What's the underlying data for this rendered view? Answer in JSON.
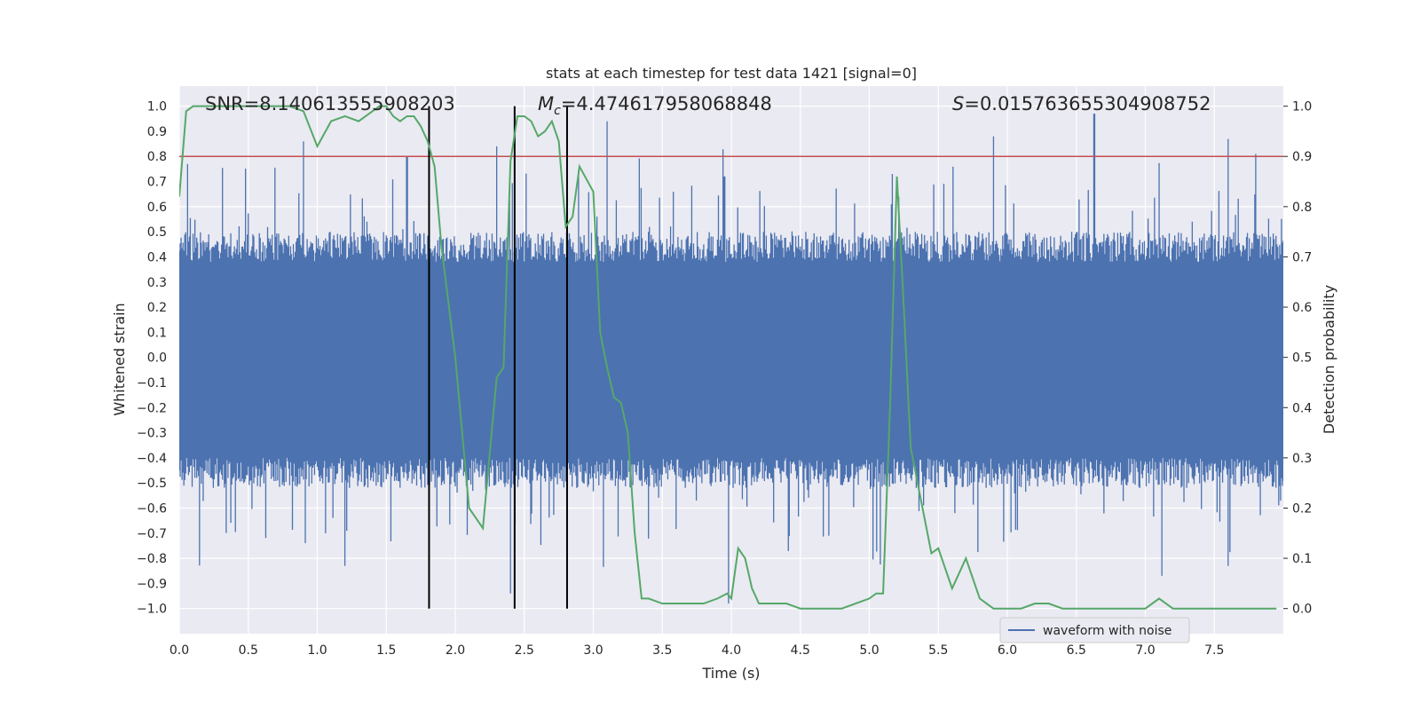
{
  "chart_data": {
    "type": "line",
    "title": "stats at each timestep for test data 1421 [signal=0]",
    "xlabel": "Time (s)",
    "ylabel_left": "Whitened strain",
    "ylabel_right": "Detection probability",
    "xlim": [
      0,
      8
    ],
    "ylim_left": [
      -1.1,
      1.08
    ],
    "ylim_right": [
      -0.05,
      1.04
    ],
    "x_ticks": [
      "0.0",
      "0.5",
      "1.0",
      "1.5",
      "2.0",
      "2.5",
      "3.0",
      "3.5",
      "4.0",
      "4.5",
      "5.0",
      "5.5",
      "6.0",
      "6.5",
      "7.0",
      "7.5"
    ],
    "x_tick_values": [
      0,
      0.5,
      1,
      1.5,
      2,
      2.5,
      3,
      3.5,
      4,
      4.5,
      5,
      5.5,
      6,
      6.5,
      7,
      7.5
    ],
    "y_left_ticks": [
      "1.0",
      "0.9",
      "0.8",
      "0.7",
      "0.6",
      "0.5",
      "0.4",
      "0.3",
      "0.2",
      "0.1",
      "0.0",
      "−0.1",
      "−0.2",
      "−0.3",
      "−0.4",
      "−0.5",
      "−0.6",
      "−0.7",
      "−0.8",
      "−0.9",
      "−1.0"
    ],
    "y_left_tick_values": [
      1.0,
      0.9,
      0.8,
      0.7,
      0.6,
      0.5,
      0.4,
      0.3,
      0.2,
      0.1,
      0.0,
      -0.1,
      -0.2,
      -0.3,
      -0.4,
      -0.5,
      -0.6,
      -0.7,
      -0.8,
      -0.9,
      -1.0
    ],
    "y_right_ticks": [
      "1.0",
      "0.9",
      "0.8",
      "0.7",
      "0.6",
      "0.5",
      "0.4",
      "0.3",
      "0.2",
      "0.1",
      "0.0"
    ],
    "y_right_tick_values": [
      1.0,
      0.9,
      0.8,
      0.7,
      0.6,
      0.5,
      0.4,
      0.3,
      0.2,
      0.1,
      0.0
    ],
    "annotations": {
      "snr": "SNR=8.140613555908203",
      "mc_symbol": "M",
      "mc_sub": "c",
      "mc_value": "=4.474617958068848",
      "s_symbol": "S",
      "s_value": "=0.015763655304908752"
    },
    "threshold_line": {
      "value": 0.9,
      "axis": "right",
      "color": "#c44e52"
    },
    "vertical_lines": [
      1.81,
      2.43,
      2.81
    ],
    "waveform": {
      "name": "waveform with noise",
      "color": "#4c72b0",
      "envelope_upper": 0.38,
      "envelope_lower": -0.4,
      "max_positive_peak": 0.98,
      "min_negative_peak": -0.98,
      "peaks": [
        [
          0.06,
          0.77
        ],
        [
          0.9,
          0.86
        ],
        [
          1.65,
          0.8
        ],
        [
          2.3,
          0.84
        ],
        [
          3.1,
          0.94
        ],
        [
          3.95,
          0.72
        ],
        [
          5.9,
          0.88
        ],
        [
          6.63,
          0.97
        ],
        [
          7.6,
          0.87
        ],
        [
          7.8,
          0.81
        ],
        [
          1.2,
          -0.83
        ],
        [
          2.4,
          -0.94
        ],
        [
          3.98,
          -0.98
        ],
        [
          7.12,
          -0.87
        ],
        [
          7.6,
          -0.83
        ]
      ]
    },
    "probability": {
      "name": "detection probability",
      "color": "#55a868",
      "x": [
        0.0,
        0.05,
        0.1,
        0.2,
        0.3,
        0.4,
        0.5,
        0.6,
        0.7,
        0.8,
        0.9,
        1.0,
        1.1,
        1.2,
        1.3,
        1.4,
        1.45,
        1.5,
        1.55,
        1.6,
        1.65,
        1.7,
        1.75,
        1.8,
        1.85,
        1.9,
        2.0,
        2.1,
        2.2,
        2.3,
        2.35,
        2.4,
        2.45,
        2.5,
        2.55,
        2.6,
        2.65,
        2.7,
        2.75,
        2.8,
        2.85,
        2.9,
        3.0,
        3.05,
        3.1,
        3.15,
        3.2,
        3.25,
        3.3,
        3.35,
        3.4,
        3.5,
        3.6,
        3.7,
        3.8,
        3.9,
        3.97,
        4.0,
        4.05,
        4.1,
        4.15,
        4.2,
        4.3,
        4.4,
        4.5,
        4.6,
        4.8,
        4.9,
        5.0,
        5.05,
        5.1,
        5.15,
        5.2,
        5.25,
        5.3,
        5.4,
        5.45,
        5.5,
        5.6,
        5.7,
        5.8,
        5.9,
        6.0,
        6.1,
        6.2,
        6.3,
        6.4,
        6.5,
        6.6,
        6.7,
        6.8,
        6.9,
        7.0,
        7.1,
        7.15,
        7.2,
        7.3,
        7.4,
        7.5,
        7.6,
        7.7,
        7.8,
        7.85,
        7.95
      ],
      "y": [
        0.82,
        0.99,
        1.0,
        1.0,
        1.0,
        1.0,
        1.0,
        1.0,
        1.0,
        1.0,
        0.99,
        0.92,
        0.97,
        0.98,
        0.97,
        0.99,
        1.0,
        1.0,
        0.98,
        0.97,
        0.98,
        0.98,
        0.96,
        0.93,
        0.88,
        0.72,
        0.5,
        0.2,
        0.16,
        0.46,
        0.48,
        0.89,
        0.98,
        0.98,
        0.97,
        0.94,
        0.95,
        0.97,
        0.93,
        0.76,
        0.78,
        0.88,
        0.83,
        0.55,
        0.48,
        0.42,
        0.41,
        0.35,
        0.15,
        0.02,
        0.02,
        0.01,
        0.01,
        0.01,
        0.01,
        0.02,
        0.03,
        0.02,
        0.12,
        0.1,
        0.04,
        0.01,
        0.01,
        0.01,
        0.0,
        0.0,
        0.0,
        0.01,
        0.02,
        0.03,
        0.03,
        0.4,
        0.86,
        0.6,
        0.32,
        0.18,
        0.11,
        0.12,
        0.04,
        0.1,
        0.02,
        0.0,
        0.0,
        0.0,
        0.01,
        0.01,
        0.0,
        0.0,
        0.0,
        0.0,
        0.0,
        0.0,
        0.0,
        0.02,
        0.01,
        0.0,
        0.0,
        0.0,
        0.0,
        0.0,
        0.0,
        0.0,
        0.0,
        0.0
      ]
    },
    "legend": {
      "position": "lower-right",
      "entries": [
        "waveform with noise"
      ]
    },
    "grid": true
  }
}
